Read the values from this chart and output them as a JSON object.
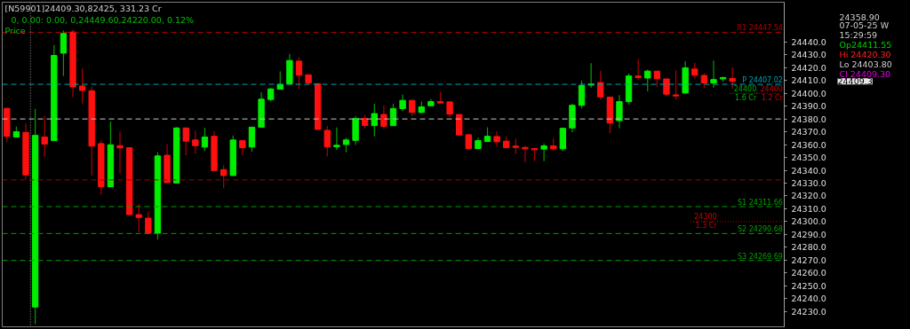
{
  "chart_data": {
    "type": "candlestick",
    "title": "[N59901]24409.30,82425, 331.23 Cr",
    "subtitle": "0, 0.00: 0.00, 0,24449.60,24220.00, 0.12%",
    "annotations": [
      "Price",
      "24358.90",
      "07-05-25 W",
      "15:29:59",
      "Op24411.55",
      "Hi 24420.30",
      "Lo 24403.80",
      "Cl 24409.30",
      "24409.3"
    ],
    "categories": [
      null,
      null,
      null,
      null,
      null,
      null,
      null,
      null,
      null,
      null,
      null,
      null,
      null,
      null,
      null,
      null,
      null,
      null,
      null,
      null,
      null,
      null,
      null,
      null,
      null,
      null,
      null,
      null,
      null,
      null,
      null,
      null,
      null,
      null,
      null,
      null,
      null,
      null,
      null,
      null,
      null,
      null,
      null,
      null,
      null,
      null,
      null,
      null,
      null,
      null,
      null,
      null,
      null,
      null,
      null,
      null,
      null,
      null,
      null,
      null,
      null,
      null,
      null,
      null,
      null,
      null,
      null,
      null,
      null,
      null,
      null,
      null,
      null,
      null,
      null,
      null,
      null,
      null,
      null,
      null,
      null,
      null,
      null
    ],
    "ohlc": [
      [
        24388.3,
        24388.5,
        24362,
        24366.5
      ],
      [
        24365.9,
        24374.1,
        24365.9,
        24370
      ],
      [
        24369.5,
        24376.4,
        24332.9,
        24336.3
      ],
      [
        24233.4,
        24387.8,
        24220,
        24367.2
      ],
      [
        24365.9,
        24382.1,
        24350.5,
        24360.4
      ],
      [
        24363.1,
        24437.7,
        24363.1,
        24429.5
      ],
      [
        24431.3,
        24448.9,
        24413.5,
        24446.6
      ],
      [
        24447.8,
        24449.6,
        24397,
        24405
      ],
      [
        24405.7,
        24419.4,
        24392,
        24402.2
      ],
      [
        24402,
        24405,
        24335.9,
        24358.8
      ],
      [
        24360.8,
        24363.6,
        24321,
        24327.2
      ],
      [
        24327.2,
        24378,
        24327.2,
        24359.9
      ],
      [
        24359.2,
        24370.2,
        24337.5,
        24357.4
      ],
      [
        24357.6,
        24357.6,
        24305.4,
        24305.4
      ],
      [
        24305.4,
        24313.5,
        24291.7,
        24303.2
      ],
      [
        24302.7,
        24307.7,
        24291,
        24291
      ],
      [
        24291,
        24354.2,
        24286,
        24351.2
      ],
      [
        24351.7,
        24360.4,
        24330.4,
        24330.4
      ],
      [
        24330,
        24373.6,
        24330,
        24373
      ],
      [
        24373,
        24373,
        24351.7,
        24362.7
      ],
      [
        24363.6,
        24370.7,
        24353,
        24359.2
      ],
      [
        24358.1,
        24373,
        24355.1,
        24365.9
      ],
      [
        24366.5,
        24370.4,
        24339.8,
        24339.8
      ],
      [
        24340.5,
        24343.9,
        24326,
        24335.9
      ],
      [
        24335.9,
        24367.2,
        24335.9,
        24363.6
      ],
      [
        24363.1,
        24363.1,
        24351.7,
        24357.6
      ],
      [
        24358.1,
        24373.6,
        24354.6,
        24373.6
      ],
      [
        24373.6,
        24400.9,
        24373.6,
        24395.4
      ],
      [
        24395.2,
        24404.3,
        24393.5,
        24403.4
      ],
      [
        24403.2,
        24417.1,
        24403.2,
        24407
      ],
      [
        24407.3,
        24430.8,
        24407.3,
        24425.6
      ],
      [
        24425.1,
        24427.9,
        24403.4,
        24414.1
      ],
      [
        24414.4,
        24414.4,
        24406.6,
        24408.2
      ],
      [
        24407.5,
        24407.5,
        24371.8,
        24371.8
      ],
      [
        24371.1,
        24374.6,
        24350.8,
        24358.1
      ],
      [
        24358.3,
        24373.4,
        24355.8,
        24359.5
      ],
      [
        24360.1,
        24365.4,
        24354,
        24363.6
      ],
      [
        24363.3,
        24382.1,
        24359.9,
        24380.3
      ],
      [
        24380.3,
        24383.2,
        24372.7,
        24375
      ],
      [
        24374.8,
        24391.7,
        24366.5,
        24384.2
      ],
      [
        24383.5,
        24390.6,
        24372.3,
        24374.3
      ],
      [
        24374.8,
        24391.9,
        24374.8,
        24388.1
      ],
      [
        24388.1,
        24399,
        24386.2,
        24394.5
      ],
      [
        24394.5,
        24395.1,
        24382.1,
        24385.1
      ],
      [
        24385.1,
        24393.5,
        24384.2,
        24389.4
      ],
      [
        24390.3,
        24395.4,
        24390.3,
        24393.5
      ],
      [
        24393.5,
        24401.1,
        24392.4,
        24392.4
      ],
      [
        24393.3,
        24394,
        24381.4,
        24383.7
      ],
      [
        24383.5,
        24383.5,
        24367.5,
        24367.5
      ],
      [
        24367.7,
        24368.6,
        24356.2,
        24356.9
      ],
      [
        24356.9,
        24365.4,
        24356.9,
        24363.1
      ],
      [
        24362.4,
        24373.6,
        24362.4,
        24366.5
      ],
      [
        24366.3,
        24370.2,
        24358.5,
        24362.2
      ],
      [
        24362.7,
        24366.5,
        24357.6,
        24357.6
      ],
      [
        24358.8,
        24364.5,
        24352.6,
        24357.8
      ],
      [
        24357.8,
        24358.8,
        24346.2,
        24356.7
      ],
      [
        24356.9,
        24357,
        24347.1,
        24356
      ],
      [
        24356.5,
        24361,
        24347.1,
        24359
      ],
      [
        24359,
        24364.9,
        24355.3,
        24356.7
      ],
      [
        24356.7,
        24373,
        24355,
        24372.7
      ],
      [
        24373,
        24391.9,
        24369.5,
        24390.6
      ],
      [
        24390.6,
        24410,
        24388.3,
        24406.1
      ],
      [
        24406.4,
        24423.5,
        24404.3,
        24407.3
      ],
      [
        24408.4,
        24417.6,
        24395.2,
        24397.2
      ],
      [
        24397,
        24397,
        24368.8,
        24376.8
      ],
      [
        24378.7,
        24398.6,
        24372.7,
        24393.5
      ],
      [
        24393.5,
        24415.3,
        24391.3,
        24413.5
      ],
      [
        24413.5,
        24426.7,
        24410.7,
        24412.3
      ],
      [
        24411.9,
        24418.5,
        24401.6,
        24417.3
      ],
      [
        24417.3,
        24417.3,
        24405.2,
        24411.4
      ],
      [
        24411.2,
        24411.2,
        24397.7,
        24399.3
      ],
      [
        24398.8,
        24418,
        24395.2,
        24397.9
      ],
      [
        24400.2,
        24425.1,
        24400.2,
        24419.9
      ],
      [
        24418.9,
        24423.8,
        24411.6,
        24414.1
      ],
      [
        24413.9,
        24415.3,
        24404.3,
        24408
      ],
      [
        24408,
        24425.6,
        24404.3,
        24410.7
      ],
      [
        24411.2,
        24413,
        24409,
        24412.3
      ],
      [
        24411.55,
        24420.3,
        24403.8,
        24409.3
      ],
      null,
      null,
      null,
      null,
      null
    ],
    "ylim": [
      24218,
      24471
    ],
    "yticks": [
      {
        "value": 24230,
        "label": "24230.0"
      },
      {
        "value": 24240,
        "label": "24240.0"
      },
      {
        "value": 24250,
        "label": "24250.0"
      },
      {
        "value": 24260,
        "label": "24260.0"
      },
      {
        "value": 24270,
        "label": "24270.0"
      },
      {
        "value": 24280,
        "label": "24280.0"
      },
      {
        "value": 24290,
        "label": "24290.0"
      },
      {
        "value": 24300,
        "label": "24300.0"
      },
      {
        "value": 24310,
        "label": "24310.0"
      },
      {
        "value": 24320,
        "label": "24320.0"
      },
      {
        "value": 24330,
        "label": "24330.0"
      },
      {
        "value": 24340,
        "label": "24340.0"
      },
      {
        "value": 24350,
        "label": "24350.0"
      },
      {
        "value": 24360,
        "label": "24360.0"
      },
      {
        "value": 24370,
        "label": "24370.0"
      },
      {
        "value": 24380,
        "label": "24380.0"
      },
      {
        "value": 24390,
        "label": "24390.0"
      },
      {
        "value": 24400,
        "label": "24400.0"
      },
      {
        "value": 24410,
        "label": "24410.0"
      },
      {
        "value": 24420,
        "label": "24420.0"
      },
      {
        "value": 24430,
        "label": "24430.0"
      },
      {
        "value": 24440,
        "label": "24440.0"
      }
    ],
    "ref_lines": [
      {
        "axis": "y",
        "value": 24447.54,
        "label": "R1 24447.54",
        "color": "#b00000",
        "line_style": "dashed"
      },
      {
        "axis": "y",
        "value": 24407.02,
        "label": "P 24407.02",
        "color": "#00a0b0",
        "line_style": "dashed"
      },
      {
        "axis": "y",
        "value": 24380,
        "color": "#c8c8c8",
        "line_style": "dashed"
      },
      {
        "axis": "y",
        "value": 24332.5,
        "color": "#a00000",
        "line_style": "dashed"
      },
      {
        "axis": "y",
        "value": 24311.66,
        "label": "S1 24311.66",
        "color": "#00a000",
        "line_style": "dashed"
      },
      {
        "axis": "y",
        "value": 24290.68,
        "label": "S2 24290.68",
        "color": "#00a000",
        "line_style": "dashed"
      },
      {
        "axis": "y",
        "value": 24269.69,
        "label": "S3 24269.69",
        "color": "#00a000",
        "line_style": "dashed"
      },
      {
        "axis": "y",
        "value": 24400,
        "label": "24400\n1.2 Cr",
        "color": "#d00000",
        "line_style": "dotted"
      },
      {
        "axis": "y",
        "value": 24400,
        "label": "24400\n1.6 Cr",
        "color": "#00b000",
        "line_style": "dotted"
      },
      {
        "axis": "y",
        "value": 24300,
        "label": "24300\n1.3 Cr",
        "color": "#d00000",
        "line_style": "dotted"
      }
    ]
  }
}
